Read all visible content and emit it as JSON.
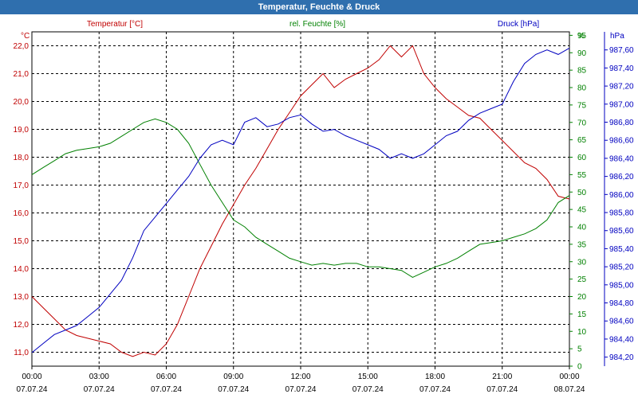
{
  "window": {
    "title": "Temperatur, Feuchte & Druck"
  },
  "colors": {
    "temperature": "#c00000",
    "humidity": "#008000",
    "pressure": "#0000c0",
    "title_bg": "#2f6fae"
  },
  "chart_data": {
    "type": "line",
    "title": "Temperatur, Feuchte & Druck",
    "grid": true,
    "x_ticks": [
      {
        "time": "00:00",
        "date": "07.07.24"
      },
      {
        "time": "03:00",
        "date": "07.07.24"
      },
      {
        "time": "06:00",
        "date": "07.07.24"
      },
      {
        "time": "09:00",
        "date": "07.07.24"
      },
      {
        "time": "12:00",
        "date": "07.07.24"
      },
      {
        "time": "15:00",
        "date": "07.07.24"
      },
      {
        "time": "18:00",
        "date": "07.07.24"
      },
      {
        "time": "21:00",
        "date": "07.07.24"
      },
      {
        "time": "00:00",
        "date": "08.07.24"
      }
    ],
    "x_range_hours": [
      0,
      24
    ],
    "axes": {
      "temperature": {
        "unit": "°C",
        "legend": "Temperatur [°C]",
        "range": [
          10.5,
          22.5
        ],
        "ticks": [
          "11,0",
          "12,0",
          "13,0",
          "14,0",
          "15,0",
          "16,0",
          "17,0",
          "18,0",
          "19,0",
          "20,0",
          "21,0",
          "22,0"
        ]
      },
      "humidity": {
        "unit": "%",
        "legend": "rel. Feuchte [%]",
        "range": [
          0,
          96
        ],
        "ticks": [
          "0",
          "5",
          "10",
          "15",
          "20",
          "25",
          "30",
          "35",
          "40",
          "45",
          "50",
          "55",
          "60",
          "65",
          "70",
          "75",
          "80",
          "85",
          "90",
          "95"
        ]
      },
      "pressure": {
        "unit": "hPa",
        "legend": "Druck [hPa]",
        "range": [
          984.1,
          987.8
        ],
        "ticks": [
          "984,20",
          "984,40",
          "984,60",
          "984,80",
          "985,00",
          "985,20",
          "985,40",
          "985,60",
          "985,80",
          "986,00",
          "986,20",
          "986,40",
          "986,60",
          "986,80",
          "987,00",
          "987,20",
          "987,40",
          "987,60"
        ]
      }
    },
    "series": [
      {
        "name": "Temperatur [°C]",
        "axis": "temperature",
        "x": [
          0,
          0.5,
          1,
          1.5,
          2,
          2.5,
          3,
          3.5,
          4,
          4.5,
          5,
          5.5,
          6,
          6.5,
          7,
          7.5,
          8,
          8.5,
          9,
          9.5,
          10,
          10.5,
          11,
          11.5,
          12,
          12.5,
          13,
          13.5,
          14,
          14.5,
          15,
          15.5,
          16,
          16.5,
          17,
          17.5,
          18,
          18.5,
          19,
          19.5,
          20,
          20.5,
          21,
          21.5,
          22,
          22.5,
          23,
          23.5,
          24
        ],
        "values": [
          13.0,
          12.6,
          12.2,
          11.8,
          11.6,
          11.5,
          11.4,
          11.3,
          11.0,
          10.85,
          11.0,
          10.9,
          11.3,
          12.0,
          13.0,
          14.0,
          14.8,
          15.6,
          16.3,
          17.0,
          17.6,
          18.3,
          19.0,
          19.6,
          20.2,
          20.6,
          21.0,
          20.5,
          20.8,
          21.0,
          21.2,
          21.5,
          22.0,
          21.6,
          22.0,
          21.0,
          20.5,
          20.1,
          19.8,
          19.5,
          19.4,
          19.0,
          18.6,
          18.2,
          17.8,
          17.6,
          17.2,
          16.6,
          16.5
        ]
      },
      {
        "name": "rel. Feuchte [%]",
        "axis": "humidity",
        "x": [
          0,
          0.5,
          1,
          1.5,
          2,
          2.5,
          3,
          3.5,
          4,
          4.5,
          5,
          5.5,
          6,
          6.5,
          7,
          7.5,
          8,
          8.5,
          9,
          9.5,
          10,
          10.5,
          11,
          11.5,
          12,
          12.5,
          13,
          13.5,
          14,
          14.5,
          15,
          15.5,
          16,
          16.5,
          17,
          17.5,
          18,
          18.5,
          19,
          19.5,
          20,
          20.5,
          21,
          21.5,
          22,
          22.5,
          23,
          23.5,
          24
        ],
        "values": [
          55,
          57,
          59,
          61,
          62,
          62.5,
          63,
          64,
          66,
          68,
          70,
          71,
          70,
          68,
          64,
          58,
          52,
          47,
          42,
          40,
          37,
          35,
          33,
          31,
          30,
          29,
          29.5,
          29,
          29.5,
          29.5,
          28.5,
          28.5,
          28,
          27.5,
          25.5,
          27,
          28.5,
          29.5,
          31,
          33,
          35,
          35.5,
          36,
          37,
          38,
          39.5,
          42,
          47,
          49
        ]
      },
      {
        "name": "Druck [hPa]",
        "axis": "pressure",
        "x": [
          0,
          0.5,
          1,
          1.5,
          2,
          2.5,
          3,
          3.5,
          4,
          4.5,
          5,
          5.5,
          6,
          6.5,
          7,
          7.5,
          8,
          8.5,
          9,
          9.5,
          10,
          10.5,
          11,
          11.5,
          12,
          12.5,
          13,
          13.5,
          14,
          14.5,
          15,
          15.5,
          16,
          16.5,
          17,
          17.5,
          18,
          18.5,
          19,
          19.5,
          20,
          20.5,
          21,
          21.5,
          22,
          22.5,
          23,
          23.5,
          24
        ],
        "values": [
          984.25,
          984.35,
          984.45,
          984.5,
          984.55,
          984.65,
          984.75,
          984.9,
          985.05,
          985.3,
          985.6,
          985.75,
          985.9,
          986.05,
          986.2,
          986.4,
          986.55,
          986.6,
          986.55,
          986.8,
          986.85,
          986.75,
          986.78,
          986.85,
          986.88,
          986.78,
          986.7,
          986.72,
          986.65,
          986.6,
          986.55,
          986.5,
          986.4,
          986.45,
          986.4,
          986.45,
          986.55,
          986.65,
          986.7,
          986.82,
          986.9,
          986.95,
          987.0,
          987.25,
          987.45,
          987.55,
          987.6,
          987.55,
          987.62
        ]
      }
    ]
  }
}
